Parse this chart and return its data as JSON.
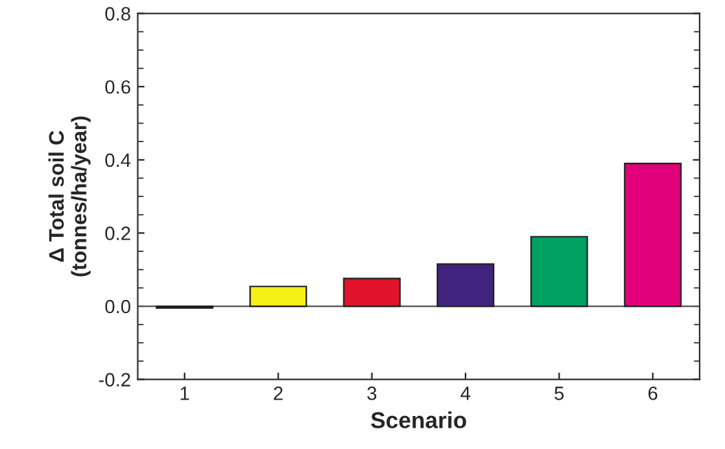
{
  "chart_data": {
    "type": "bar",
    "xlabel": "Scenario",
    "ylabel": "Δ Total soil C\n(tonnes/ha/year)",
    "categories": [
      "1",
      "2",
      "3",
      "4",
      "5",
      "6"
    ],
    "values": [
      -0.005,
      0.054,
      0.076,
      0.115,
      0.19,
      0.39
    ],
    "colors": [
      "#000000",
      "#f5f016",
      "#e0132b",
      "#40237f",
      "#00a060",
      "#e2007a"
    ],
    "ylim": [
      -0.2,
      0.8
    ],
    "yticks": [
      {
        "value": -0.2,
        "label": "-0.2"
      },
      {
        "value": 0.0,
        "label": "0.0"
      },
      {
        "value": 0.2,
        "label": "0.2"
      },
      {
        "value": 0.4,
        "label": "0.4"
      },
      {
        "value": 0.6,
        "label": "0.6"
      },
      {
        "value": 0.8,
        "label": "0.8"
      }
    ],
    "ref_lines": [
      {
        "axis": "y",
        "value": 0,
        "color": "#555555"
      }
    ],
    "grid": false,
    "legend": false
  }
}
